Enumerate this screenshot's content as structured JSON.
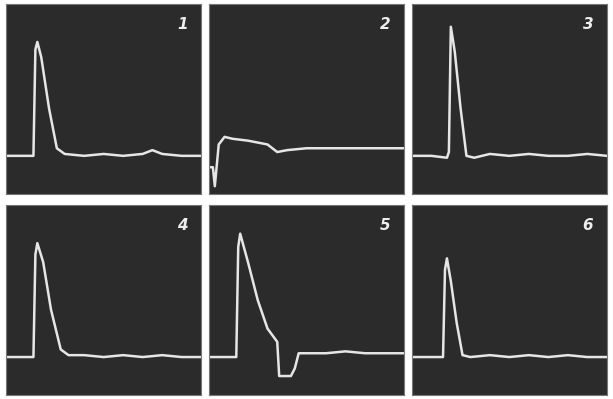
{
  "chart_data": [
    {
      "type": "line",
      "title": "1",
      "color": "#e6e6e6",
      "grid": false,
      "tick_labels": false,
      "x": [
        0,
        10,
        14,
        15,
        16,
        18,
        22,
        26,
        30,
        40,
        50,
        60,
        70,
        75,
        80,
        90,
        100
      ],
      "values": [
        20,
        20,
        20,
        76,
        80,
        72,
        45,
        24,
        21,
        20,
        21,
        20,
        21,
        23,
        21,
        20,
        20
      ],
      "xlim": [
        0,
        100
      ],
      "ylim": [
        0,
        100
      ],
      "xticks": [],
      "yticks": []
    },
    {
      "type": "line",
      "title": "2",
      "color": "#e6e6e6",
      "grid": false,
      "tick_labels": false,
      "x": [
        0,
        2,
        3,
        5,
        8,
        12,
        20,
        30,
        35,
        40,
        50,
        60,
        70,
        80,
        90,
        100
      ],
      "values": [
        14,
        14,
        4,
        26,
        30,
        29,
        28,
        26,
        22,
        23,
        24,
        24,
        24,
        24,
        24,
        24
      ],
      "xlim": [
        0,
        100
      ],
      "ylim": [
        0,
        100
      ],
      "xticks": [],
      "yticks": []
    },
    {
      "type": "line",
      "title": "3",
      "color": "#e6e6e6",
      "grid": false,
      "tick_labels": false,
      "x": [
        0,
        10,
        18,
        19,
        20,
        22,
        25,
        28,
        32,
        40,
        50,
        60,
        70,
        80,
        90,
        100
      ],
      "values": [
        20,
        20,
        19,
        22,
        88,
        75,
        45,
        20,
        19,
        21,
        20,
        21,
        20,
        20,
        21,
        20
      ],
      "xlim": [
        0,
        100
      ],
      "ylim": [
        0,
        100
      ],
      "xticks": [],
      "yticks": []
    },
    {
      "type": "line",
      "title": "4",
      "color": "#e6e6e6",
      "grid": false,
      "tick_labels": false,
      "x": [
        0,
        10,
        14,
        15,
        16,
        19,
        23,
        28,
        32,
        40,
        50,
        60,
        70,
        80,
        90,
        100
      ],
      "values": [
        20,
        20,
        20,
        74,
        80,
        70,
        45,
        24,
        21,
        21,
        20,
        21,
        20,
        21,
        20,
        20
      ],
      "xlim": [
        0,
        100
      ],
      "ylim": [
        0,
        100
      ],
      "xticks": [],
      "yticks": []
    },
    {
      "type": "line",
      "title": "5",
      "color": "#e6e6e6",
      "grid": false,
      "tick_labels": false,
      "x": [
        0,
        10,
        14,
        15,
        16,
        20,
        25,
        30,
        35,
        36,
        42,
        44,
        46,
        50,
        60,
        70,
        80,
        90,
        100
      ],
      "values": [
        20,
        20,
        20,
        78,
        85,
        70,
        50,
        35,
        28,
        10,
        10,
        14,
        22,
        22,
        22,
        23,
        22,
        22,
        22
      ],
      "xlim": [
        0,
        100
      ],
      "ylim": [
        0,
        100
      ],
      "xticks": [],
      "yticks": []
    },
    {
      "type": "line",
      "title": "6",
      "color": "#e6e6e6",
      "grid": false,
      "tick_labels": false,
      "x": [
        0,
        10,
        16,
        17,
        18,
        20,
        23,
        26,
        30,
        40,
        50,
        60,
        70,
        80,
        90,
        100
      ],
      "values": [
        20,
        20,
        20,
        66,
        72,
        60,
        38,
        21,
        20,
        21,
        20,
        21,
        20,
        21,
        20,
        20
      ],
      "xlim": [
        0,
        100
      ],
      "ylim": [
        0,
        100
      ],
      "xticks": [],
      "yticks": []
    }
  ]
}
